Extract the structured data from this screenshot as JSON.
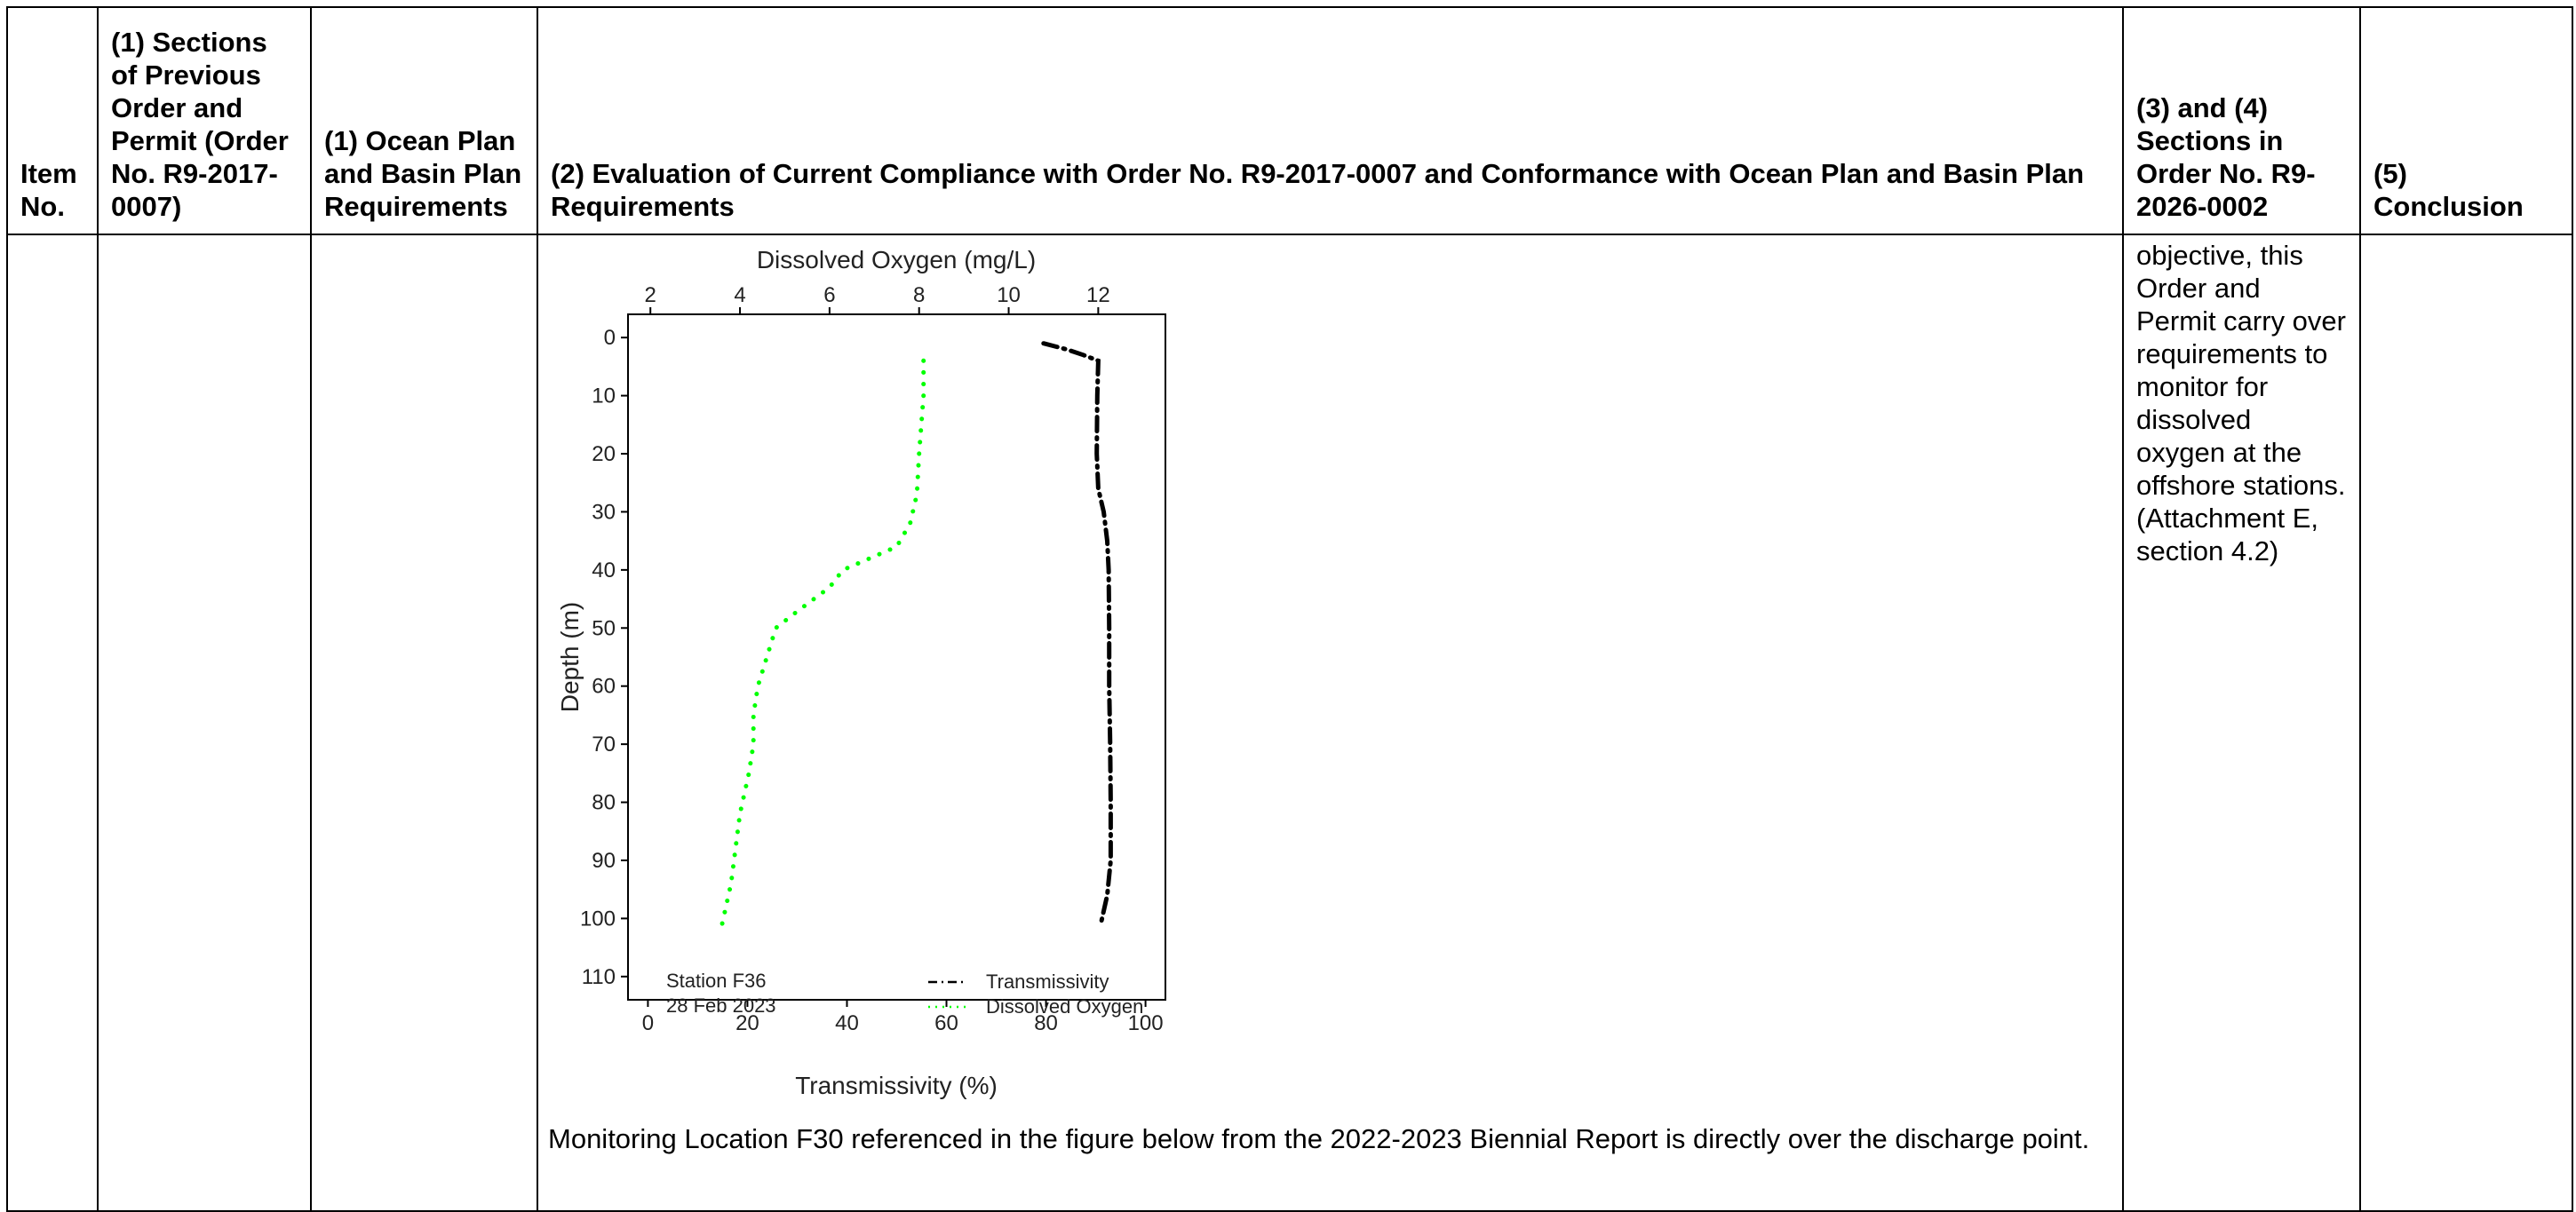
{
  "table": {
    "headers": [
      "Item No.",
      "(1) Sections of Previous Order and Permit (Order No. R9-2017-0007)",
      "(1) Ocean Plan and Basin Plan Requirements",
      "(2) Evaluation of Current Compliance with Order No. R9-2017-0007 and Conformance with Ocean Plan and Basin Plan Requirements",
      "(3) and (4) Sections in Order No. R9-2026-0002",
      "(5) Conclusion"
    ],
    "row": {
      "item_no": "",
      "previous_sections": "",
      "plan_requirements": "",
      "sections_new_order": "objective, this Order and Permit carry over requirements to monitor for dissolved oxygen at the offshore stations. (Attachment E, section 4.2)",
      "conclusion": ""
    },
    "caption": "Monitoring Location F30 referenced in the figure below from the 2022-2023 Biennial Report is directly over the discharge point."
  },
  "chart_data": {
    "type": "line",
    "top_axis_label": "Dissolved Oxygen (mg/L)",
    "bottom_axis_label": "Transmissivity (%)",
    "ylabel": "Depth (m)",
    "top_ticks": [
      2,
      4,
      6,
      8,
      10,
      12
    ],
    "bottom_ticks": [
      0,
      20,
      40,
      60,
      80,
      100
    ],
    "y_ticks": [
      0,
      10,
      20,
      30,
      40,
      50,
      60,
      70,
      80,
      90,
      100,
      110
    ],
    "top_xlim": [
      1.5,
      13.5
    ],
    "bottom_xlim": [
      -4,
      104
    ],
    "ylim": [
      -4,
      114
    ],
    "y_inverted": true,
    "annotation": [
      "Station F36",
      "28 Feb 2023"
    ],
    "legend_position": "bottom-right",
    "series": [
      {
        "name": "Transmissivity",
        "axis": "bottom",
        "color": "#000000",
        "style": "dash-dot",
        "points": [
          [
            79.5,
            1
          ],
          [
            84,
            2
          ],
          [
            87.5,
            3
          ],
          [
            90.5,
            4
          ],
          [
            90.3,
            10
          ],
          [
            90.2,
            20
          ],
          [
            90.5,
            26
          ],
          [
            91.6,
            30
          ],
          [
            92.3,
            35
          ],
          [
            92.6,
            40
          ],
          [
            92.7,
            50
          ],
          [
            92.7,
            60
          ],
          [
            92.9,
            70
          ],
          [
            93.0,
            80
          ],
          [
            93.0,
            90
          ],
          [
            92.3,
            96
          ],
          [
            91.0,
            101
          ]
        ]
      },
      {
        "name": "Dissolved Oxygen",
        "axis": "top",
        "color": "#00ff00",
        "style": "dotted",
        "points": [
          [
            8.1,
            4
          ],
          [
            8.1,
            10
          ],
          [
            8.0,
            20
          ],
          [
            7.95,
            27
          ],
          [
            7.8,
            32
          ],
          [
            7.5,
            36
          ],
          [
            6.3,
            40
          ],
          [
            6.0,
            43
          ],
          [
            5.3,
            47
          ],
          [
            4.8,
            50
          ],
          [
            4.6,
            55
          ],
          [
            4.4,
            60
          ],
          [
            4.3,
            65
          ],
          [
            4.3,
            70
          ],
          [
            4.2,
            75
          ],
          [
            4.0,
            82
          ],
          [
            3.9,
            88
          ],
          [
            3.8,
            94
          ],
          [
            3.6,
            101
          ]
        ]
      }
    ]
  }
}
